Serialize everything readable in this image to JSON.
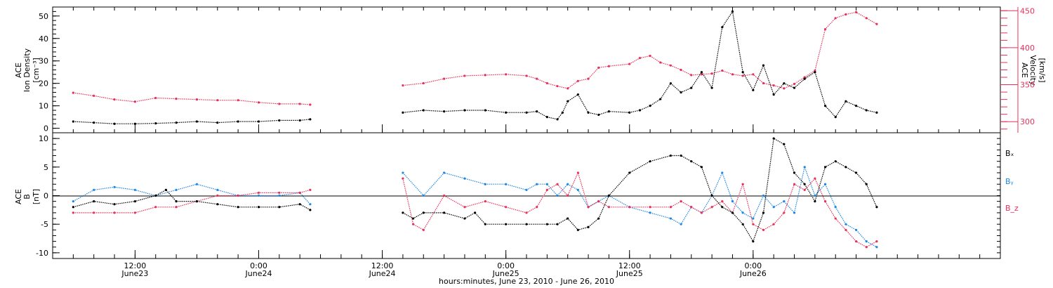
{
  "chart_data": [
    {
      "type": "scatter",
      "panel": "top",
      "left_axis_label": [
        "ACE",
        "Ion Density",
        "[cm⁻³]"
      ],
      "right_axis_label": [
        "ACE",
        "Velocity",
        "[km/s]"
      ],
      "left_ylim": [
        -2,
        54
      ],
      "right_ylim": [
        285,
        455
      ],
      "left_ticks": [
        "0",
        "10",
        "20",
        "30",
        "40",
        "50"
      ],
      "right_ticks": [
        "300",
        "350",
        "400",
        "450"
      ],
      "colors": {
        "density": "#000000",
        "velocity": "#e8305a"
      },
      "series": [
        {
          "name": "",
          "axis": "left",
          "color": "#000000",
          "x": [
            6,
            8,
            10,
            12,
            14,
            16,
            18,
            20,
            22,
            24,
            26,
            28,
            29,
            38,
            40,
            42,
            44,
            46,
            48,
            50,
            51,
            52,
            53,
            53.5,
            54,
            55,
            56,
            57,
            58,
            60,
            61,
            62,
            63,
            64,
            65,
            66,
            67,
            68,
            69,
            70,
            71,
            72,
            73,
            74,
            75,
            76,
            77,
            78,
            79,
            80,
            81,
            82,
            83,
            84
          ],
          "y": [
            3,
            2.5,
            2,
            2,
            2.2,
            2.5,
            3,
            2.5,
            3,
            3,
            3.5,
            3.5,
            4,
            7,
            8,
            7.5,
            8,
            8,
            7,
            7,
            7.5,
            5,
            4,
            7,
            12,
            15,
            7,
            6,
            7.5,
            7,
            8,
            10,
            13,
            20,
            16,
            18,
            25,
            18,
            45,
            52,
            25,
            17,
            28,
            15,
            20,
            18,
            22,
            25,
            10,
            5,
            12,
            10,
            8,
            7
          ]
        },
        {
          "name": "",
          "axis": "right",
          "color": "#e8305a",
          "x": [
            6,
            8,
            10,
            12,
            14,
            16,
            18,
            20,
            22,
            24,
            26,
            28,
            29,
            38,
            40,
            42,
            44,
            46,
            48,
            50,
            51,
            52,
            53,
            54,
            55,
            56,
            57,
            58,
            60,
            61,
            62,
            63,
            64,
            65,
            66,
            67,
            68,
            69,
            70,
            71,
            72,
            73,
            74,
            75,
            76,
            77,
            78,
            79,
            80,
            81,
            82,
            83,
            84
          ],
          "y": [
            339,
            335,
            330,
            327,
            332,
            331,
            330,
            329,
            329,
            326,
            324,
            324,
            323,
            349,
            352,
            358,
            362,
            363,
            364,
            362,
            358,
            352,
            348,
            345,
            355,
            358,
            373,
            375,
            378,
            386,
            389,
            380,
            376,
            370,
            363,
            364,
            365,
            369,
            364,
            362,
            364,
            352,
            349,
            345,
            351,
            360,
            369,
            425,
            440,
            445,
            448,
            440,
            432
          ]
        }
      ]
    },
    {
      "type": "scatter",
      "panel": "bottom",
      "left_axis_label": [
        "ACE",
        "B",
        "[nT]"
      ],
      "ylim": [
        -11,
        11
      ],
      "ticks": [
        "-10",
        "-5",
        "0",
        "5",
        "10"
      ],
      "colors": {
        "bx": "#000000",
        "by": "#1e88e5",
        "bz": "#e8305a"
      },
      "series": [
        {
          "name": "Bₓ",
          "color": "#000000",
          "x": [
            6,
            8,
            10,
            12,
            14,
            15,
            16,
            18,
            20,
            22,
            24,
            26,
            28,
            29,
            38,
            39,
            40,
            42,
            44,
            45,
            46,
            48,
            50,
            52,
            53,
            54,
            55,
            56,
            57,
            58,
            60,
            62,
            64,
            65,
            66,
            67,
            68,
            69,
            70,
            71,
            72,
            73,
            74,
            75,
            76,
            77,
            78,
            79,
            80,
            81,
            82,
            83,
            84
          ],
          "y": [
            -2,
            -1,
            -1.5,
            -1,
            0,
            1,
            -1,
            -1,
            -1.5,
            -2,
            -2,
            -2,
            -1.5,
            -2.5,
            -3,
            -4,
            -3,
            -3,
            -4,
            -3,
            -5,
            -5,
            -5,
            -5,
            -5,
            -4,
            -6,
            -5.5,
            -4,
            0,
            4,
            6,
            7,
            7,
            6,
            5,
            0,
            -2,
            -3,
            -5,
            -8,
            -3,
            10,
            9,
            4,
            2,
            -1,
            5,
            6,
            5,
            4,
            2,
            -2
          ]
        },
        {
          "name": "Bᵧ",
          "color": "#1e88e5",
          "x": [
            6,
            8,
            10,
            12,
            14,
            16,
            18,
            20,
            22,
            24,
            26,
            28,
            29,
            38,
            40,
            42,
            44,
            46,
            48,
            50,
            51,
            52,
            53,
            54,
            55,
            56,
            57,
            58,
            60,
            62,
            64,
            65,
            66,
            67,
            68,
            69,
            70,
            71,
            72,
            73,
            74,
            75,
            76,
            77,
            78,
            79,
            80,
            81,
            82,
            83,
            84
          ],
          "y": [
            -1,
            1,
            1.5,
            1,
            0,
            1,
            2,
            1,
            0,
            0,
            0,
            0.5,
            -1.5,
            4,
            0,
            4,
            3,
            2,
            2,
            1,
            2,
            2,
            0,
            2,
            1,
            -2,
            -1,
            0,
            -2,
            -3,
            -4,
            -5,
            -2,
            -3,
            0,
            4,
            -1,
            -3,
            -4,
            0,
            -2,
            -1,
            -3,
            5,
            0,
            2,
            -2,
            -5,
            -6,
            -8,
            -9
          ]
        },
        {
          "name": "B_z",
          "color": "#e8305a",
          "x": [
            6,
            8,
            10,
            12,
            14,
            16,
            18,
            20,
            22,
            24,
            26,
            28,
            29,
            38,
            39,
            40,
            42,
            44,
            46,
            48,
            50,
            51,
            52,
            53,
            54,
            55,
            56,
            57,
            58,
            60,
            62,
            64,
            65,
            66,
            67,
            68,
            69,
            70,
            71,
            72,
            73,
            74,
            75,
            76,
            77,
            78,
            79,
            80,
            81,
            82,
            83,
            84
          ],
          "y": [
            -3,
            -3,
            -3,
            -3,
            -2,
            -2,
            -1,
            0,
            0,
            0.5,
            0.5,
            0.5,
            1,
            3,
            -5,
            -6,
            0,
            -2,
            -1,
            -2,
            -3,
            -2,
            1,
            2,
            0,
            4,
            -2,
            -1,
            -2,
            -2,
            -2,
            -2,
            -1,
            -2,
            -3,
            -2,
            -1,
            -3,
            2,
            -5,
            -6,
            -5,
            -3,
            2,
            1,
            3,
            -1,
            -4,
            -6,
            -8,
            -9,
            -8
          ]
        }
      ]
    }
  ],
  "x_axis": {
    "range": [
      4,
      96
    ],
    "major_ticks": [
      {
        "x": 12,
        "time": "12:00",
        "date": "June23"
      },
      {
        "x": 24,
        "time": "0:00",
        "date": "June24"
      },
      {
        "x": 36,
        "time": "12:00",
        "date": "June24"
      },
      {
        "x": 48,
        "time": "0:00",
        "date": "June25"
      },
      {
        "x": 60,
        "time": "12:00",
        "date": "June25"
      },
      {
        "x": 72,
        "time": "0:00",
        "date": "June26"
      }
    ],
    "label": "hours:minutes, June 23, 2010 - June 26, 2010"
  },
  "legend": [
    "Bₓ",
    "Bᵧ",
    "B_z"
  ]
}
